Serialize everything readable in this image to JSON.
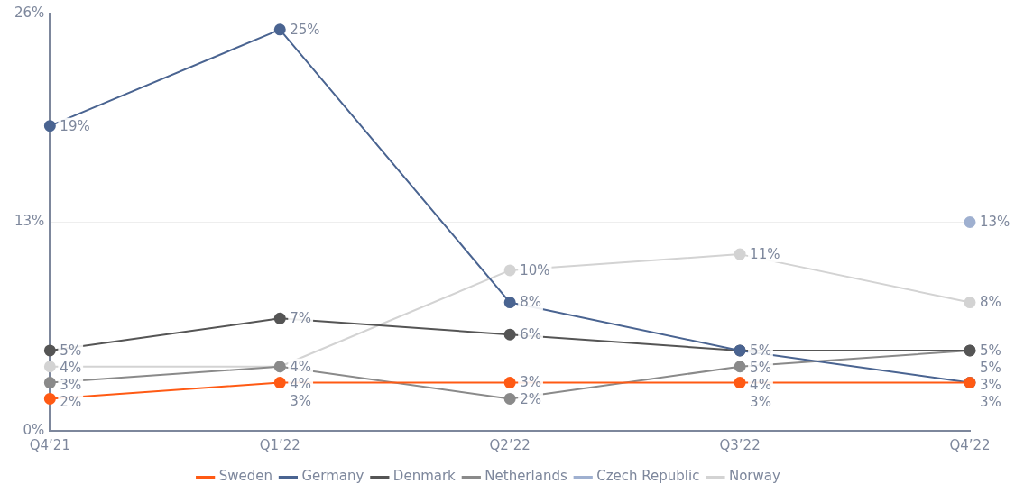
{
  "chart_data": {
    "type": "line",
    "categories": [
      "Q4’21",
      "Q1’22",
      "Q2’22",
      "Q3’22",
      "Q4’22"
    ],
    "ylim": [
      0,
      26
    ],
    "yticks": [
      {
        "value": 0,
        "label": "0%"
      },
      {
        "value": 13,
        "label": "13%"
      },
      {
        "value": 26,
        "label": "26%"
      }
    ],
    "grid": "y",
    "legend": "bottom",
    "marker": "circle",
    "line_style": "solid",
    "series": [
      {
        "name": "Sweden",
        "color": "#ff5a14",
        "values": [
          2,
          3,
          3,
          3,
          3
        ],
        "value_labels": [
          "2%",
          "3%",
          "3%",
          "3%",
          "3%"
        ]
      },
      {
        "name": "Germany",
        "color": "#4a6491",
        "values": [
          19,
          25,
          8,
          5,
          3
        ],
        "value_labels": [
          "19%",
          "25%",
          "8%",
          "5%",
          "3%"
        ]
      },
      {
        "name": "Denmark",
        "color": "#555555",
        "values": [
          5,
          7,
          6,
          5,
          5
        ],
        "value_labels": [
          "5%",
          "7%",
          "6%",
          "5%",
          "5%"
        ]
      },
      {
        "name": "Netherlands",
        "color": "#8a8a8a",
        "values": [
          3,
          4,
          2,
          4,
          5
        ],
        "value_labels": [
          "3%",
          "4%",
          "2%",
          "4%",
          "5%"
        ]
      },
      {
        "name": "Czech Republic",
        "color": "#9fb0d0",
        "values": [
          null,
          null,
          null,
          null,
          13
        ],
        "value_labels": [
          null,
          null,
          null,
          null,
          "13%"
        ]
      },
      {
        "name": "Norway",
        "color": "#d3d3d3",
        "values": [
          4,
          4,
          10,
          11,
          8
        ],
        "value_labels": [
          "4%",
          "4%",
          "10%",
          "11%",
          "8%"
        ]
      }
    ]
  }
}
